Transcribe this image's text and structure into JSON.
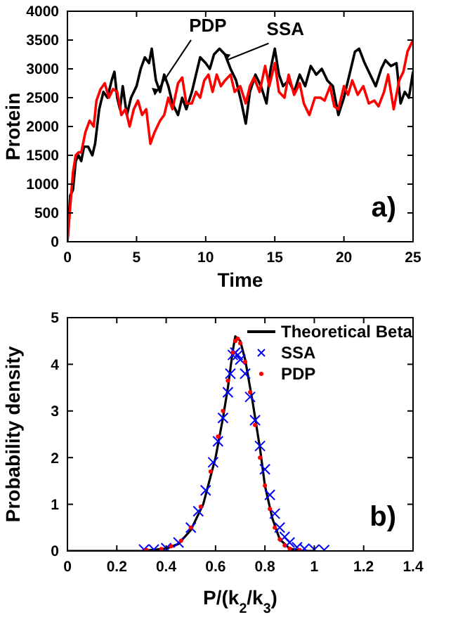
{
  "chart_data": [
    {
      "type": "line",
      "xlabel": "Time",
      "ylabel": "Protein",
      "xlim": [
        0,
        25
      ],
      "xticks": [
        0,
        5,
        10,
        15,
        20,
        25
      ],
      "ylim": [
        0,
        4000
      ],
      "yticks": [
        0,
        500,
        1000,
        1500,
        2000,
        2500,
        3000,
        3500,
        4000
      ],
      "annotations": [
        {
          "text": "PDP",
          "x": 6.3,
          "y": 2550
        },
        {
          "text": "SSA",
          "x": 11.5,
          "y": 3150
        },
        "a)"
      ],
      "series": [
        {
          "color": "#000000",
          "x": [
            0,
            0.2,
            0.4,
            0.6,
            0.8,
            1,
            1.2,
            1.5,
            1.8,
            2,
            2.3,
            2.6,
            2.9,
            3.2,
            3.4,
            3.6,
            3.8,
            4,
            4.3,
            4.6,
            5,
            5.3,
            5.6,
            5.9,
            6.1,
            6.4,
            6.7,
            7,
            7.3,
            7.6,
            8,
            8.3,
            8.6,
            9,
            9.3,
            9.6,
            10,
            10.3,
            10.6,
            11,
            11.4,
            11.8,
            12.2,
            12.6,
            12.9,
            13.2,
            13.6,
            14,
            14.4,
            14.7,
            15,
            15.3,
            15.6,
            16,
            16.4,
            16.8,
            17.2,
            17.6,
            18,
            18.4,
            18.8,
            19.2,
            19.6,
            20,
            20.4,
            20.8,
            21.1,
            21.5,
            21.9,
            22.3,
            22.7,
            23,
            23.4,
            23.8,
            24.1,
            24.4,
            24.7,
            25
          ],
          "values": [
            0,
            800,
            900,
            1400,
            1500,
            1400,
            1650,
            1650,
            1500,
            1700,
            2300,
            2600,
            2500,
            2800,
            2950,
            2500,
            2300,
            2700,
            2200,
            2500,
            2700,
            3000,
            3200,
            3100,
            3350,
            2800,
            2600,
            2900,
            2700,
            2400,
            2200,
            2500,
            2300,
            2600,
            2900,
            3200,
            3100,
            3000,
            3250,
            3350,
            3250,
            3000,
            2800,
            2400,
            2050,
            2600,
            2900,
            2700,
            2400,
            3000,
            3350,
            2900,
            2700,
            2800,
            2600,
            2900,
            2700,
            3050,
            2900,
            3000,
            2800,
            2700,
            2200,
            2500,
            2900,
            3300,
            3350,
            3100,
            2900,
            2700,
            3000,
            3150,
            3050,
            3100,
            2400,
            2600,
            2500,
            2950
          ]
        },
        {
          "color": "#ff0000",
          "x": [
            0,
            0.2,
            0.4,
            0.6,
            0.8,
            1,
            1.3,
            1.6,
            1.9,
            2.1,
            2.4,
            2.7,
            3,
            3.3,
            3.6,
            3.9,
            4.2,
            4.5,
            4.8,
            5.1,
            5.4,
            5.7,
            6,
            6.3,
            6.7,
            7,
            7.3,
            7.6,
            8,
            8.3,
            8.6,
            9,
            9.3,
            9.6,
            9.9,
            10.2,
            10.5,
            10.8,
            11.1,
            11.4,
            11.8,
            12.1,
            12.5,
            12.9,
            13.2,
            13.5,
            13.9,
            14.3,
            14.6,
            15,
            15.3,
            15.7,
            16,
            16.4,
            16.8,
            17.1,
            17.5,
            17.9,
            18.3,
            18.6,
            19,
            19.3,
            19.6,
            20,
            20.3,
            20.6,
            21,
            21.4,
            21.8,
            22.2,
            22.5,
            22.9,
            23.2,
            23.6,
            24,
            24.3,
            24.6,
            25
          ],
          "values": [
            0,
            600,
            1200,
            1500,
            1550,
            1550,
            1900,
            2100,
            2000,
            2450,
            2650,
            2750,
            2500,
            2650,
            2600,
            2200,
            2300,
            2000,
            2300,
            2450,
            2200,
            2300,
            1700,
            1900,
            2100,
            2200,
            2500,
            2300,
            2750,
            2850,
            2400,
            2400,
            2600,
            2500,
            2800,
            2900,
            2600,
            2900,
            2700,
            2800,
            2900,
            2600,
            2700,
            2400,
            2700,
            2850,
            2600,
            3050,
            2700,
            3100,
            2600,
            2500,
            2900,
            2550,
            2750,
            2400,
            2200,
            2500,
            2500,
            2450,
            2700,
            2350,
            2300,
            2700,
            2550,
            2800,
            2550,
            2700,
            2400,
            2450,
            2350,
            2600,
            2900,
            2300,
            2800,
            2950,
            3300,
            3500
          ]
        }
      ]
    },
    {
      "type": "line",
      "xlabel": "P/(k$_{2}$/k$_{3}$)",
      "ylabel": "Probability density",
      "xlim": [
        0,
        1.4
      ],
      "xticks": [
        0,
        0.2,
        0.4,
        0.6,
        0.8,
        1,
        1.2,
        1.4
      ],
      "ylim": [
        0,
        5
      ],
      "yticks": [
        0,
        1,
        2,
        3,
        4,
        5
      ],
      "legend": "top right",
      "annotations": [
        "b)"
      ],
      "series": [
        {
          "name": "Theoretical Beta",
          "color": "#000000",
          "x": [
            0,
            0.3,
            0.4,
            0.45,
            0.5,
            0.55,
            0.6,
            0.63,
            0.65,
            0.67,
            0.68,
            0.7,
            0.72,
            0.75,
            0.78,
            0.8,
            0.83,
            0.86,
            0.9,
            0.95,
            1
          ],
          "values": [
            0,
            0,
            0.05,
            0.15,
            0.45,
            1.0,
            2.0,
            2.85,
            3.5,
            4.3,
            4.6,
            4.5,
            4.1,
            3.2,
            2.2,
            1.4,
            0.7,
            0.25,
            0.05,
            0,
            0
          ]
        },
        {
          "name": "SSA",
          "type": "scatter",
          "marker": "cross",
          "color": "#0000ff",
          "x": [
            0.31,
            0.35,
            0.4,
            0.45,
            0.5,
            0.53,
            0.56,
            0.59,
            0.61,
            0.63,
            0.65,
            0.66,
            0.67,
            0.68,
            0.69,
            0.7,
            0.72,
            0.74,
            0.76,
            0.78,
            0.8,
            0.82,
            0.84,
            0.86,
            0.88,
            0.9,
            0.93,
            0.96,
            1,
            1.04
          ],
          "values": [
            0.03,
            0.03,
            0.06,
            0.18,
            0.5,
            0.85,
            1.3,
            1.9,
            2.35,
            2.85,
            3.4,
            3.8,
            4.2,
            4.25,
            4.2,
            4.1,
            3.8,
            3.3,
            2.8,
            2.25,
            1.75,
            1.2,
            0.8,
            0.5,
            0.3,
            0.18,
            0.08,
            0.05,
            0.03,
            0.02
          ]
        },
        {
          "name": "PDP",
          "type": "scatter",
          "marker": "circle",
          "color": "#ff0000",
          "x": [
            0.32,
            0.38,
            0.42,
            0.46,
            0.5,
            0.54,
            0.58,
            0.61,
            0.63,
            0.65,
            0.67,
            0.68,
            0.69,
            0.7,
            0.72,
            0.74,
            0.76,
            0.78,
            0.8,
            0.82,
            0.84,
            0.86,
            0.88,
            0.9,
            0.94
          ],
          "values": [
            0.02,
            0.04,
            0.1,
            0.22,
            0.5,
            0.95,
            1.7,
            2.45,
            3.0,
            3.65,
            4.25,
            4.5,
            4.55,
            4.45,
            4.05,
            3.4,
            2.7,
            2.0,
            1.4,
            0.9,
            0.5,
            0.25,
            0.12,
            0.05,
            0.02
          ]
        }
      ]
    }
  ]
}
